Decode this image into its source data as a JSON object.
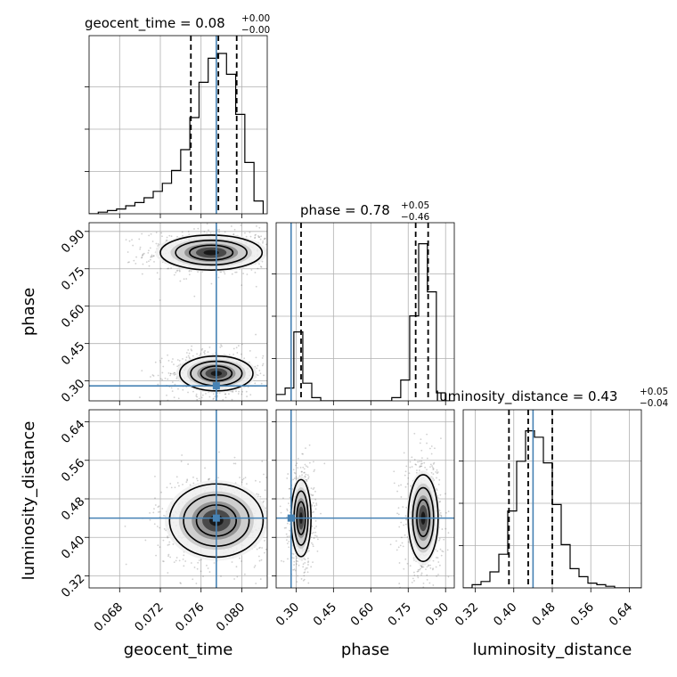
{
  "chart_data": {
    "type": "corner",
    "parameters": [
      "geocent_time",
      "phase",
      "luminosity_distance"
    ],
    "injection": {
      "geocent_time": 0.0775,
      "phase": 0.28,
      "luminosity_distance": 0.44
    },
    "truth_color": "#4682b4",
    "titles": [
      {
        "param": "geocent_time",
        "main": "geocent_time = 0.08",
        "plus": "+0.00",
        "minus": "−0.00"
      },
      {
        "param": "phase",
        "main": "phase = 0.78",
        "plus": "+0.05",
        "minus": "−0.46"
      },
      {
        "param": "luminosity_distance",
        "main": "luminosity_distance = 0.43",
        "plus": "+0.05",
        "minus": "−0.04"
      }
    ],
    "ranges": {
      "geocent_time": [
        0.065,
        0.0825
      ],
      "phase": [
        0.22,
        0.935
      ],
      "luminosity_distance": [
        0.295,
        0.665
      ]
    },
    "ticks": {
      "geocent_time": {
        "values": [
          0.068,
          0.072,
          0.076,
          0.08
        ],
        "labels": [
          "0.068",
          "0.072",
          "0.076",
          "0.080"
        ]
      },
      "phase": {
        "values": [
          0.3,
          0.45,
          0.6,
          0.75,
          0.9
        ],
        "labels": [
          "0.30",
          "0.45",
          "0.60",
          "0.75",
          "0.90"
        ]
      },
      "luminosity_distance": {
        "values": [
          0.32,
          0.4,
          0.48,
          0.56,
          0.64
        ],
        "labels": [
          "0.32",
          "0.40",
          "0.48",
          "0.56",
          "0.64"
        ]
      }
    },
    "axis_labels": {
      "geocent_time": "geocent_time",
      "phase": "phase",
      "luminosity_distance": "luminosity_distance"
    },
    "quantiles": {
      "geocent_time": [
        0.075,
        0.0777,
        0.0795
      ],
      "phase": [
        0.32,
        0.78,
        0.83
      ],
      "luminosity_distance": [
        0.39,
        0.43,
        0.48
      ]
    },
    "histograms": {
      "geocent_time": {
        "edges": [
          0.065,
          0.0659,
          0.0668,
          0.0677,
          0.0686,
          0.0695,
          0.0704,
          0.0713,
          0.0722,
          0.0731,
          0.074,
          0.0749,
          0.0758,
          0.0767,
          0.0776,
          0.0785,
          0.0794,
          0.0803,
          0.0812,
          0.0821
        ],
        "counts": [
          0.0,
          0.01,
          0.02,
          0.03,
          0.05,
          0.07,
          0.1,
          0.14,
          0.19,
          0.27,
          0.4,
          0.6,
          0.82,
          0.97,
          1.0,
          0.87,
          0.62,
          0.32,
          0.08
        ]
      },
      "phase": {
        "edges": [
          0.22,
          0.256,
          0.291,
          0.327,
          0.363,
          0.399,
          0.434,
          0.47,
          0.506,
          0.541,
          0.577,
          0.613,
          0.649,
          0.684,
          0.72,
          0.756,
          0.792,
          0.827,
          0.863,
          0.899,
          0.935
        ],
        "counts": [
          0.04,
          0.08,
          0.43,
          0.11,
          0.02,
          0.0,
          0.0,
          0.0,
          0.0,
          0.0,
          0.0,
          0.0,
          0.0,
          0.02,
          0.13,
          0.53,
          0.98,
          0.68,
          0.05,
          0.0
        ]
      },
      "luminosity_distance": {
        "edges": [
          0.295,
          0.3135,
          0.332,
          0.3505,
          0.369,
          0.3875,
          0.406,
          0.4245,
          0.443,
          0.4615,
          0.48,
          0.4985,
          0.517,
          0.5355,
          0.554,
          0.5725,
          0.591,
          0.6095,
          0.628,
          0.6465,
          0.665
        ],
        "counts": [
          0.0,
          0.02,
          0.04,
          0.1,
          0.21,
          0.48,
          0.79,
          0.98,
          0.94,
          0.78,
          0.52,
          0.27,
          0.12,
          0.07,
          0.03,
          0.02,
          0.01,
          0.0,
          0.0,
          0.0
        ]
      }
    },
    "posterior_modes": [
      {
        "x": "geocent_time",
        "y": "phase",
        "centers": [
          [
            0.077,
            0.815
          ],
          [
            0.0775,
            0.33
          ]
        ],
        "spread": [
          [
            0.0025,
            0.035
          ],
          [
            0.0018,
            0.035
          ]
        ]
      },
      {
        "x": "geocent_time",
        "y": "luminosity_distance",
        "centers": [
          [
            0.0775,
            0.435
          ]
        ],
        "spread": [
          [
            0.0023,
            0.038
          ]
        ]
      },
      {
        "x": "phase",
        "y": "luminosity_distance",
        "centers": [
          [
            0.32,
            0.44
          ],
          [
            0.81,
            0.44
          ]
        ],
        "spread": [
          [
            0.02,
            0.04
          ],
          [
            0.03,
            0.045
          ]
        ]
      }
    ],
    "grid": true
  }
}
